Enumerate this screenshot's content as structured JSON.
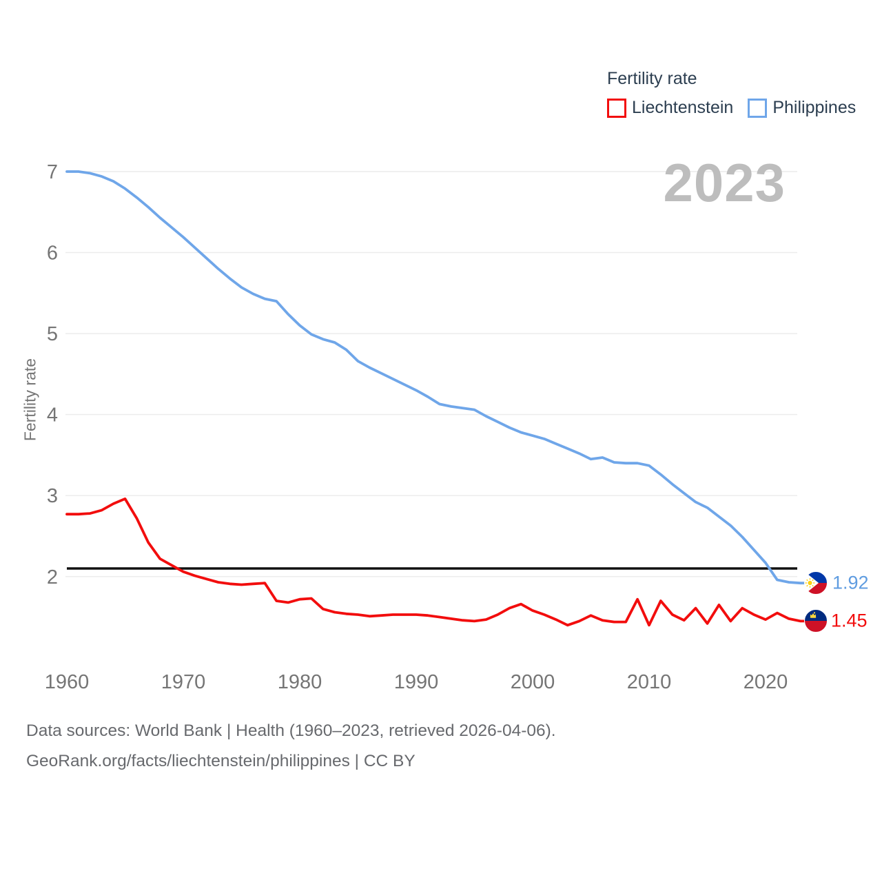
{
  "legend": {
    "title": "Fertility rate",
    "items": [
      {
        "label": "Liechtenstein",
        "color": "#f20d0d"
      },
      {
        "label": "Philippines",
        "color": "#6fa6e9"
      }
    ]
  },
  "watermark": "2023",
  "axes": {
    "y_label": "Fertility rate",
    "y_ticks": [
      7,
      6,
      5,
      4,
      3,
      2
    ],
    "x_ticks": [
      1960,
      1970,
      1980,
      1990,
      2000,
      2010,
      2020
    ]
  },
  "reference_line": {
    "value": 2.1,
    "color": "#111111"
  },
  "end_labels": [
    {
      "series": "Philippines",
      "value": "1.92"
    },
    {
      "series": "Liechtenstein",
      "value": "1.45"
    }
  ],
  "footer": {
    "line1": "Data sources: World Bank | Health (1960–2023, retrieved 2026-04-06).",
    "line2": "GeoRank.org/facts/liechtenstein/philippines | CC BY"
  },
  "chart_data": {
    "type": "line",
    "title": "Fertility rate",
    "xlabel": "",
    "ylabel": "Fertility rate",
    "grid": true,
    "legend_position": "top-right",
    "ylim": [
      1.35,
      7.0
    ],
    "xlim": [
      1960,
      2023
    ],
    "reference_line_value": 2.1,
    "x": [
      1960,
      1961,
      1962,
      1963,
      1964,
      1965,
      1966,
      1967,
      1968,
      1969,
      1970,
      1971,
      1972,
      1973,
      1974,
      1975,
      1976,
      1977,
      1978,
      1979,
      1980,
      1981,
      1982,
      1983,
      1984,
      1985,
      1986,
      1987,
      1988,
      1989,
      1990,
      1991,
      1992,
      1993,
      1994,
      1995,
      1996,
      1997,
      1998,
      1999,
      2000,
      2001,
      2002,
      2003,
      2004,
      2005,
      2006,
      2007,
      2008,
      2009,
      2010,
      2011,
      2012,
      2013,
      2014,
      2015,
      2016,
      2017,
      2018,
      2019,
      2020,
      2021,
      2022,
      2023
    ],
    "series": [
      {
        "name": "Philippines",
        "color": "#6fa6e9",
        "end_label": "1.92",
        "values": [
          7.0,
          7.0,
          6.98,
          6.94,
          6.88,
          6.79,
          6.68,
          6.56,
          6.43,
          6.31,
          6.19,
          6.06,
          5.93,
          5.8,
          5.68,
          5.57,
          5.49,
          5.43,
          5.4,
          5.24,
          5.1,
          4.99,
          4.93,
          4.89,
          4.8,
          4.66,
          4.58,
          4.51,
          4.44,
          4.37,
          4.3,
          4.22,
          4.13,
          4.1,
          4.08,
          4.06,
          3.98,
          3.91,
          3.84,
          3.78,
          3.74,
          3.7,
          3.64,
          3.58,
          3.52,
          3.45,
          3.47,
          3.41,
          3.4,
          3.4,
          3.37,
          3.26,
          3.14,
          3.03,
          2.92,
          2.85,
          2.74,
          2.63,
          2.49,
          2.33,
          2.17,
          1.96,
          1.93,
          1.92
        ]
      },
      {
        "name": "Liechtenstein",
        "color": "#f20d0d",
        "end_label": "1.45",
        "values": [
          2.77,
          2.77,
          2.78,
          2.82,
          2.9,
          2.96,
          2.72,
          2.42,
          2.22,
          2.14,
          2.06,
          2.01,
          1.97,
          1.93,
          1.91,
          1.9,
          1.91,
          1.92,
          1.7,
          1.68,
          1.72,
          1.73,
          1.6,
          1.56,
          1.54,
          1.53,
          1.51,
          1.52,
          1.53,
          1.53,
          1.53,
          1.52,
          1.5,
          1.48,
          1.46,
          1.45,
          1.47,
          1.53,
          1.61,
          1.66,
          1.58,
          1.53,
          1.47,
          1.4,
          1.45,
          1.52,
          1.46,
          1.44,
          1.44,
          1.72,
          1.4,
          1.7,
          1.53,
          1.46,
          1.61,
          1.42,
          1.65,
          1.45,
          1.61,
          1.53,
          1.47,
          1.55,
          1.48,
          1.45
        ]
      }
    ]
  }
}
